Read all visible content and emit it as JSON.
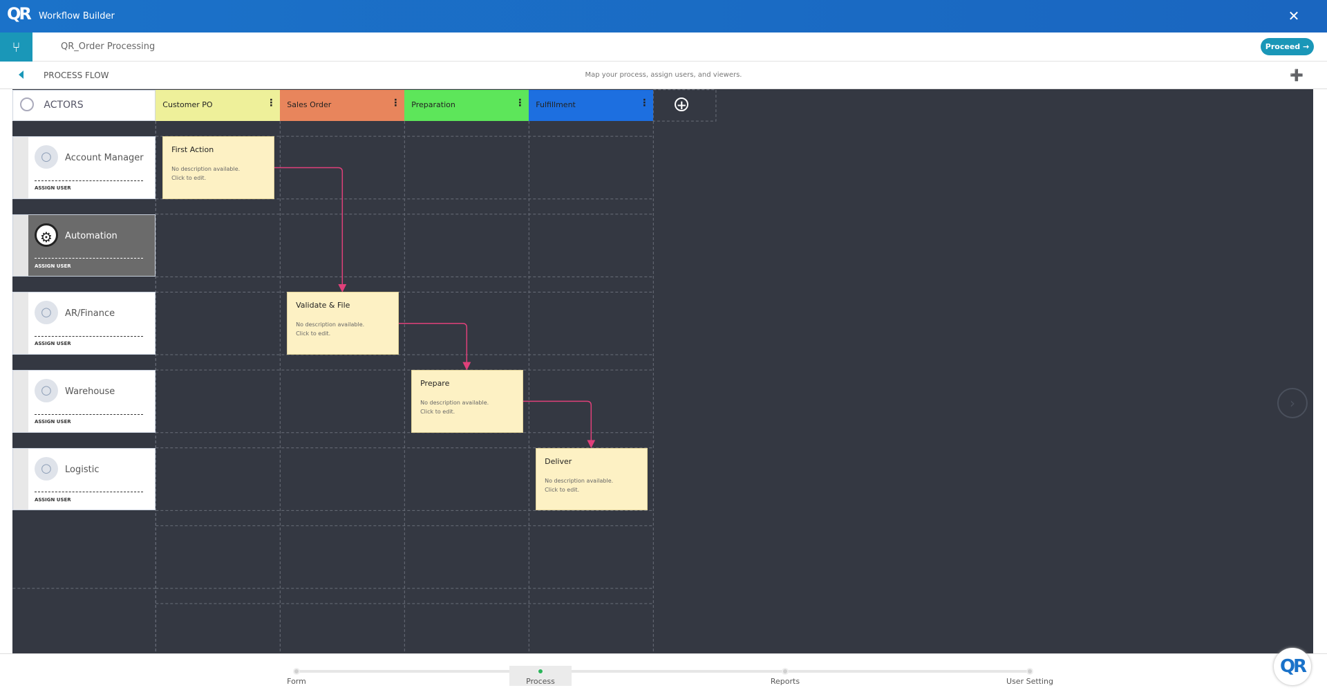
{
  "header": {
    "title": "Workflow Builder"
  },
  "toolbar": {
    "workflow_name": "QR_Order Processing",
    "proceed": "Proceed"
  },
  "subheader": {
    "section": "PROCESS FLOW",
    "hint": "Map your process, assign users, and viewers."
  },
  "board": {
    "actors_label": "ACTORS",
    "stages": [
      {
        "name": "Customer PO",
        "color": "#eef09a"
      },
      {
        "name": "Sales Order",
        "color": "#e8855c"
      },
      {
        "name": "Preparation",
        "color": "#5de65a"
      },
      {
        "name": "Fulfillment",
        "color": "#1d6fe0"
      }
    ],
    "actors": [
      {
        "name": "Account Manager",
        "action": "ASSIGN USER",
        "automated": false,
        "cells": [
          {
            "title": "First Action",
            "description": [
              "No description available.",
              "Click to edit."
            ]
          },
          null,
          null,
          null
        ]
      },
      {
        "name": "Automation",
        "action": "ASSIGN USER",
        "automated": true,
        "cells": [
          null,
          null,
          null,
          null
        ]
      },
      {
        "name": "AR/Finance",
        "action": "ASSIGN USER",
        "automated": false,
        "cells": [
          null,
          {
            "title": "Validate & File",
            "description": [
              "No description available.",
              "Click to edit."
            ]
          },
          null,
          null
        ]
      },
      {
        "name": "Warehouse",
        "action": "ASSIGN USER",
        "automated": false,
        "cells": [
          null,
          null,
          {
            "title": "Prepare",
            "description": [
              "No description available.",
              "Click to edit."
            ]
          },
          null
        ]
      },
      {
        "name": "Logistic",
        "action": "ASSIGN USER",
        "automated": false,
        "cells": [
          null,
          null,
          null,
          {
            "title": "Deliver",
            "description": [
              "No description available.",
              "Click to edit."
            ]
          }
        ]
      }
    ]
  },
  "steps": [
    {
      "label": "Form",
      "active": false
    },
    {
      "label": "Process",
      "active": true
    },
    {
      "label": "Reports",
      "active": false
    },
    {
      "label": "User Setting",
      "active": false
    }
  ]
}
